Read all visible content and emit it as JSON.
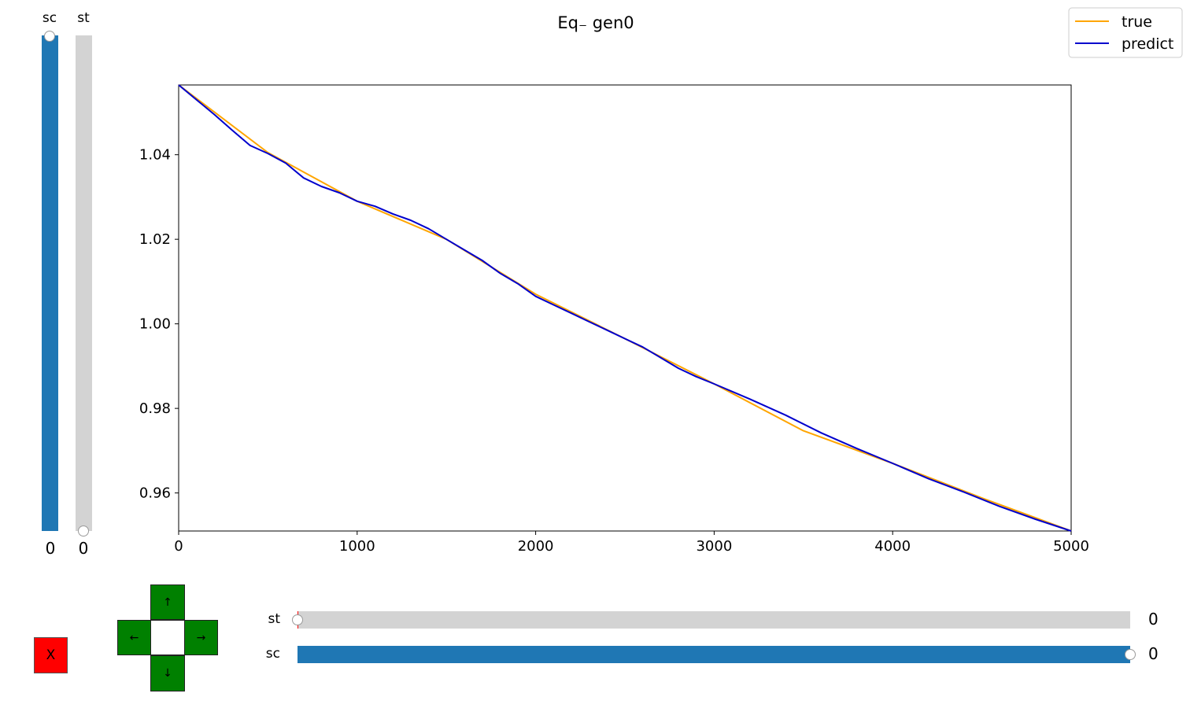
{
  "chart_data": {
    "type": "line",
    "title": "Eq₋ gen0",
    "xlabel": "",
    "ylabel": "",
    "xlim": [
      0,
      5000
    ],
    "ylim": [
      0.951,
      1.0565
    ],
    "xticks": [
      0,
      1000,
      2000,
      3000,
      4000,
      5000
    ],
    "yticks": [
      0.96,
      0.98,
      1.0,
      1.02,
      1.04
    ],
    "xtick_labels": [
      "0",
      "1000",
      "2000",
      "3000",
      "4000",
      "5000"
    ],
    "ytick_labels": [
      "0.96",
      "0.98",
      "1.00",
      "1.02",
      "1.04"
    ],
    "grid": false,
    "legend": {
      "placement": "top-right",
      "entries": [
        "true",
        "predict"
      ]
    },
    "series": [
      {
        "name": "true",
        "color": "#ffa500",
        "x": [
          0,
          500,
          1000,
          1500,
          2000,
          2500,
          3000,
          3500,
          4000,
          4500,
          5000
        ],
        "y": [
          1.0565,
          1.0405,
          1.029,
          1.02,
          1.007,
          0.9965,
          0.9858,
          0.9747,
          0.967,
          0.9588,
          0.951
        ]
      },
      {
        "name": "predict",
        "color": "#0000cd",
        "x": [
          0,
          100,
          200,
          300,
          400,
          500,
          600,
          700,
          800,
          900,
          1000,
          1100,
          1200,
          1300,
          1400,
          1500,
          1600,
          1700,
          1800,
          1900,
          2000,
          2100,
          2200,
          2300,
          2400,
          2500,
          2600,
          2700,
          2800,
          2900,
          3000,
          3200,
          3400,
          3600,
          3800,
          4000,
          4200,
          4400,
          4600,
          4800,
          5000
        ],
        "y": [
          1.0565,
          1.053,
          1.0495,
          1.0458,
          1.0422,
          1.0403,
          1.038,
          1.0345,
          1.0325,
          1.031,
          1.029,
          1.0278,
          1.026,
          1.0245,
          1.0225,
          1.02,
          1.0175,
          1.015,
          1.012,
          1.0095,
          1.0065,
          1.0045,
          1.0025,
          1.0005,
          0.9985,
          0.9965,
          0.9945,
          0.992,
          0.9895,
          0.9875,
          0.9858,
          0.9822,
          0.9784,
          0.9742,
          0.9705,
          0.967,
          0.9634,
          0.9602,
          0.9568,
          0.9538,
          0.951
        ]
      }
    ]
  },
  "left_sliders": [
    {
      "label": "sc",
      "value": "0",
      "fill_fraction": 1.0,
      "color": "#1f77b4"
    },
    {
      "label": "st",
      "value": "0",
      "fill_fraction": 0.0,
      "color": "#d3d3d3"
    }
  ],
  "bottom_sliders": [
    {
      "label": "st",
      "value": "0",
      "fill_fraction": 0.0,
      "color": "#d3d3d3"
    },
    {
      "label": "sc",
      "value": "0",
      "fill_fraction": 1.0,
      "color": "#1f77b4"
    }
  ],
  "controls": {
    "close_label": "X",
    "up_arrow": "↑",
    "down_arrow": "↓",
    "left_arrow": "←",
    "right_arrow": "→"
  },
  "colors": {
    "button_green": "#008000",
    "close_red": "#ff0000",
    "slider_blue": "#1f77b4",
    "slider_track": "#d3d3d3"
  }
}
